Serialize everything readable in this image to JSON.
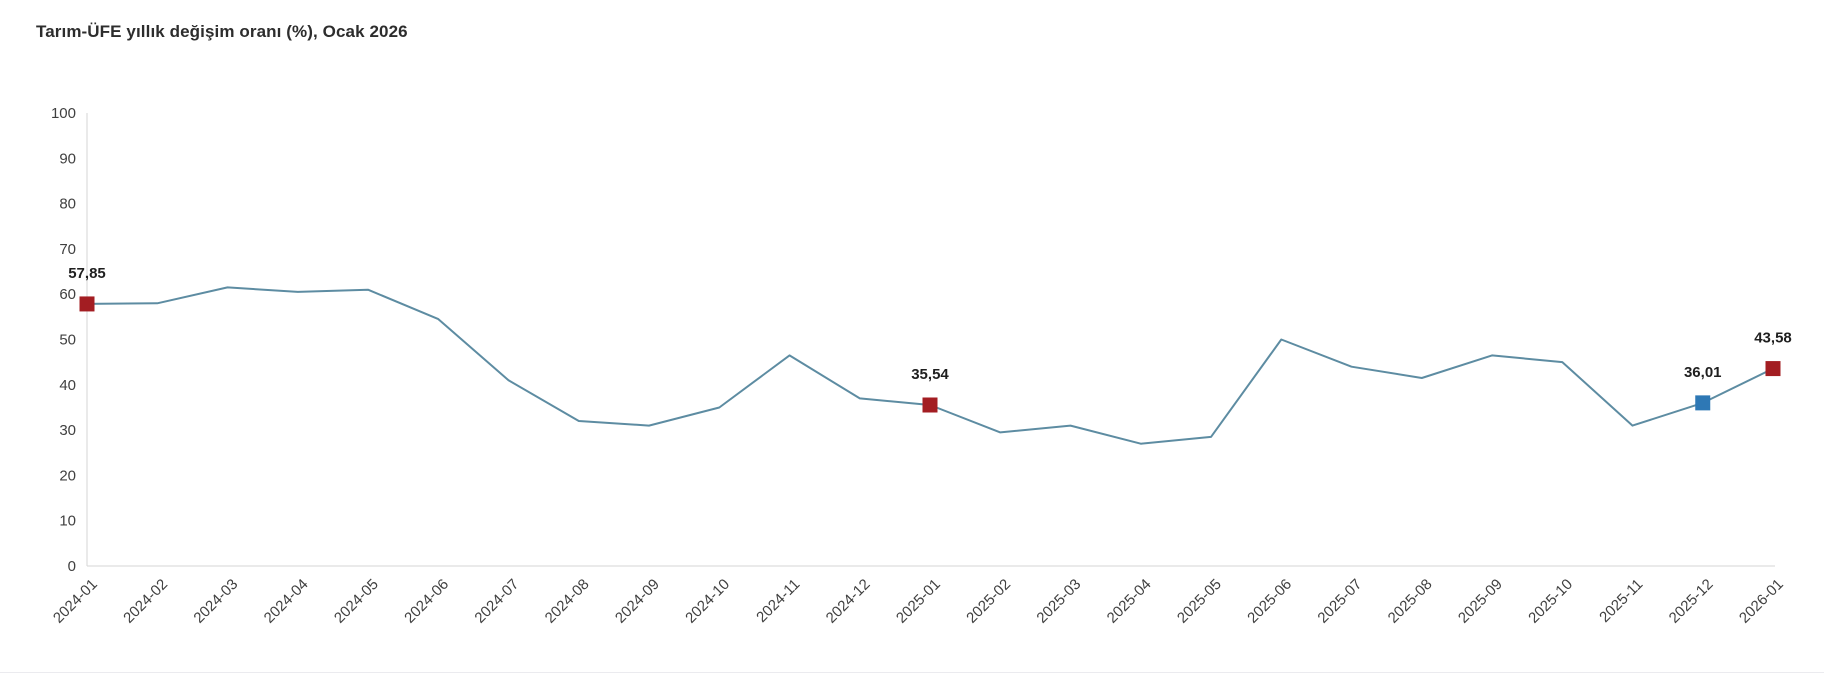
{
  "page": {
    "title": "Tarım-ÜFE yıllık değişim oranı (%), Ocak 2026"
  },
  "chart_data": {
    "type": "line",
    "title": "Tarım-ÜFE yıllık değişim oranı (%), Ocak 2026",
    "xlabel": "",
    "ylabel": "",
    "ylim": [
      0,
      100
    ],
    "ytick_step": 10,
    "grid": false,
    "legend_position": "none",
    "categories": [
      "2024-01",
      "2024-02",
      "2024-03",
      "2024-04",
      "2024-05",
      "2024-06",
      "2024-07",
      "2024-08",
      "2024-09",
      "2024-10",
      "2024-11",
      "2024-12",
      "2025-01",
      "2025-02",
      "2025-03",
      "2025-04",
      "2025-05",
      "2025-06",
      "2025-07",
      "2025-08",
      "2025-09",
      "2025-10",
      "2025-11",
      "2025-12",
      "2026-01"
    ],
    "series": [
      {
        "name": "Tarım-ÜFE yıllık değişim oranı (%)",
        "values": [
          57.85,
          58,
          61.5,
          60.5,
          61,
          54.5,
          41,
          32,
          31,
          35,
          46.5,
          37,
          35.54,
          29.5,
          31,
          27,
          28.5,
          50,
          44,
          41.5,
          46.5,
          45,
          31,
          36.01,
          43.58
        ]
      }
    ],
    "annotated_points": [
      {
        "category": "2024-01",
        "index": 0,
        "value": 57.85,
        "label": "57,85",
        "marker_color": "#A31D22"
      },
      {
        "category": "2025-01",
        "index": 12,
        "value": 35.54,
        "label": "35,54",
        "marker_color": "#A31D22"
      },
      {
        "category": "2025-12",
        "index": 23,
        "value": 36.01,
        "label": "36,01",
        "marker_color": "#2E78B5"
      },
      {
        "category": "2026-01",
        "index": 24,
        "value": 43.58,
        "label": "43,58",
        "marker_color": "#A31D22"
      }
    ],
    "colors": {
      "line": "#5D8CA2",
      "marker_red": "#A31D22",
      "marker_blue": "#2E78B5",
      "axis": "#D6D6D6",
      "tick_text": "#404040",
      "label_text": "#1F1F1F"
    }
  }
}
